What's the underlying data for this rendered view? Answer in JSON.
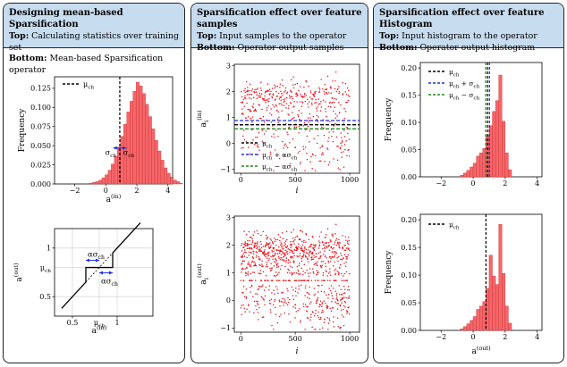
{
  "panels": [
    {
      "title": "Designing mean-based Sparsification",
      "top_key": "Top:",
      "top_text": "Calculating statistics over training set",
      "bottom_key": "Bottom:",
      "bottom_text": "Mean-based Sparsification operator"
    },
    {
      "title": "Sparsification effect over feature samples",
      "top_key": "Top:",
      "top_text": "Input samples to the operator",
      "bottom_key": "Bottom:",
      "bottom_text": "Operator output samples"
    },
    {
      "title": "Sparsification effect over feature Histogram",
      "top_key": "Top:",
      "top_text": "Input histogram to the operator",
      "bottom_key": "Bottom:",
      "bottom_text": "Operator output histogram"
    }
  ],
  "labels": {
    "frequency": "Frequency",
    "mu_ch": "μ",
    "ch": "ch",
    "mu_plus": "μ",
    "plus_sigma": " + σ",
    "mu_minus": "μ",
    "minus_sigma": " − σ",
    "sigma": "σ",
    "alpha_sigma": "ασ",
    "a": "a",
    "in": "(in)",
    "out": "(out)",
    "i": "i",
    "a_i": "a",
    "i_sub": "i",
    "alpha_plus": " + ασ",
    "alpha_minus": " − ασ"
  },
  "colors": {
    "header": "#c7dcef",
    "bar": "#f4666a",
    "bar_edge": "#d03030",
    "dots": "#e8141c",
    "blue": "#1f2ee0",
    "green": "#1f8a1f"
  },
  "chart_data": [
    {
      "name": "training-histogram",
      "type": "bar",
      "xlabel": "a(in)",
      "ylabel": "Frequency",
      "xlim": [
        -3.3,
        4.3
      ],
      "ylim": [
        0,
        0.14
      ],
      "xticks": [
        -2,
        0,
        2,
        4
      ],
      "yticks": [
        0.0,
        0.025,
        0.05,
        0.075,
        0.1,
        0.125
      ],
      "bin_start": -1.05,
      "bin_width": 0.2,
      "values": [
        0.001,
        0.002,
        0.003,
        0.005,
        0.008,
        0.012,
        0.018,
        0.026,
        0.036,
        0.048,
        0.062,
        0.078,
        0.094,
        0.108,
        0.121,
        0.133,
        0.128,
        0.118,
        0.104,
        0.088,
        0.072,
        0.057,
        0.043,
        0.031,
        0.021,
        0.014,
        0.009,
        0.005,
        0.003,
        0.001
      ],
      "mu": 0.9,
      "sigma": 0.42,
      "legend": [
        "μch"
      ]
    },
    {
      "name": "sparsification-operator",
      "type": "line",
      "xlabel": "μch",
      "ylabel": "a(out)",
      "xlim": [
        0.3,
        1.4
      ],
      "ylim": [
        0.3,
        1.2
      ],
      "xticks": [
        0.5,
        1.0
      ],
      "yticks": [
        0.5,
        1.0
      ],
      "mu": 0.8,
      "alpha_sigma": 0.15,
      "ytick_extra": "μch"
    },
    {
      "name": "input-samples",
      "type": "scatter",
      "xlabel": "i",
      "ylabel": "a_i(in)",
      "xlim": [
        -60,
        1090
      ],
      "ylim": [
        -1.15,
        3.05
      ],
      "xticks": [
        0,
        500,
        1000
      ],
      "yticks": [
        -1,
        0,
        1,
        2,
        3
      ],
      "mu": 0.72,
      "upper": 0.88,
      "lower": 0.56,
      "legend": [
        "μch",
        "μch + ασch",
        "μch − ασch"
      ]
    },
    {
      "name": "output-samples",
      "type": "scatter",
      "xlabel": "i",
      "ylabel": "a_i(out)",
      "xlim": [
        -60,
        1090
      ],
      "ylim": [
        -1.15,
        3.05
      ],
      "xticks": [
        0,
        500,
        1000
      ],
      "yticks": [
        -1,
        0,
        1,
        2,
        3
      ],
      "mu": 0.72
    },
    {
      "name": "input-histogram",
      "type": "bar",
      "xlabel": "",
      "ylabel": "Frequency",
      "xlim": [
        -3.3,
        4.3
      ],
      "ylim": [
        0,
        0.21
      ],
      "xticks": [
        -2,
        0,
        2,
        4
      ],
      "yticks": [
        0.0,
        0.05,
        0.1,
        0.15,
        0.2
      ],
      "bin_start": -0.8,
      "bin_width": 0.2,
      "values": [
        0.003,
        0.007,
        0.012,
        0.018,
        0.025,
        0.038,
        0.044,
        0.052,
        0.076,
        0.094,
        0.12,
        0.14,
        0.187,
        0.102,
        0.044,
        0.013
      ],
      "mu": 0.9,
      "sigma": 0.25,
      "legend": [
        "μch",
        "μch + σch",
        "μch − σch"
      ]
    },
    {
      "name": "output-histogram",
      "type": "bar",
      "xlabel": "a(out)",
      "ylabel": "Frequency",
      "xlim": [
        -3.3,
        4.3
      ],
      "ylim": [
        0,
        0.21
      ],
      "xticks": [
        -2,
        0,
        2,
        4
      ],
      "yticks": [
        0.0,
        0.05,
        0.1,
        0.15,
        0.2
      ],
      "bin_start": -0.8,
      "bin_width": 0.2,
      "values": [
        0.003,
        0.007,
        0.012,
        0.018,
        0.025,
        0.038,
        0.044,
        0.052,
        0.076,
        0.136,
        0.098,
        0.083,
        0.192,
        0.103,
        0.044,
        0.013
      ],
      "mu": 0.8,
      "legend": [
        "μch"
      ]
    }
  ]
}
